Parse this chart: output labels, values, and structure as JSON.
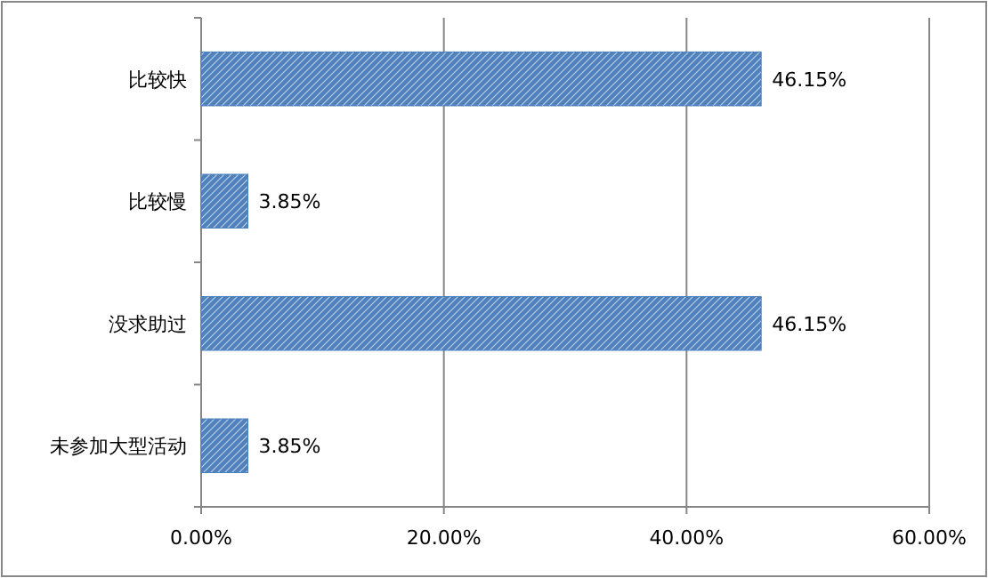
{
  "chart_data": {
    "type": "bar",
    "orientation": "horizontal",
    "categories": [
      "比较快",
      "比较慢",
      "没求助过",
      "未参加大型活动"
    ],
    "values": [
      46.15,
      3.85,
      46.15,
      3.85
    ],
    "value_labels": [
      "46.15%",
      "3.85%",
      "46.15%",
      "3.85%"
    ],
    "color": "#4f81bd",
    "xlim": [
      0,
      60
    ],
    "xticks": [
      {
        "value": 0,
        "label": "0.00%"
      },
      {
        "value": 20,
        "label": "20.00%"
      },
      {
        "value": 40,
        "label": "40.00%"
      },
      {
        "value": 60,
        "label": "60.00%"
      }
    ],
    "grid": "x"
  }
}
